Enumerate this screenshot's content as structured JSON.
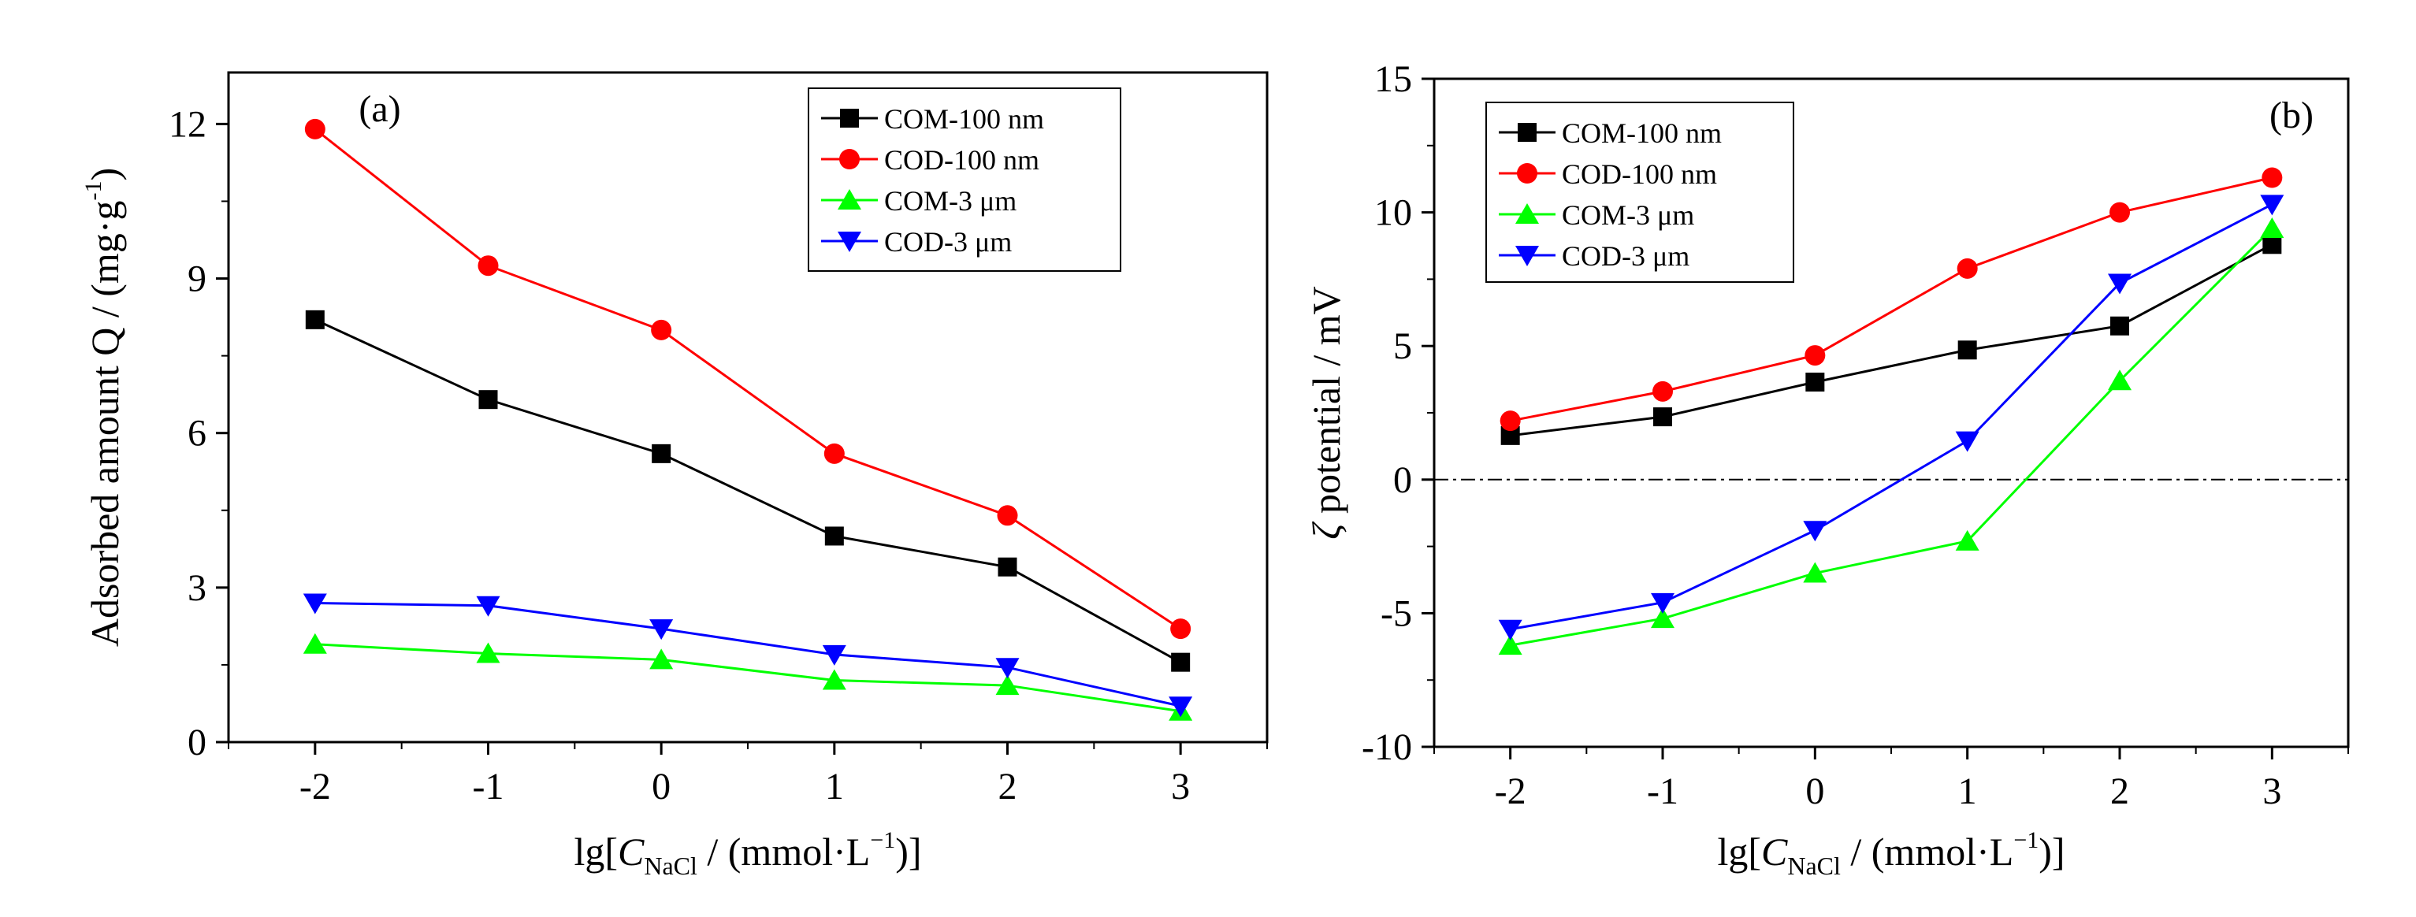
{
  "chart_data": [
    {
      "type": "line",
      "panel_label": "(a)",
      "x": [
        -2,
        -1,
        0,
        1,
        2,
        3
      ],
      "xticks": [
        "-2",
        "-1",
        "0",
        "1",
        "2",
        "3"
      ],
      "xlim": [
        -2.5,
        3.5
      ],
      "xlabel": {
        "prefix": "lg[",
        "italic": "C",
        "sub": "NaCl",
        "suffix": " / (mmol·L",
        "sup": "−1",
        "end": ")]"
      },
      "ylabel": {
        "text": "Adsorbed amount Q / (mg·g",
        "sup": "-1",
        "end": ")"
      },
      "ylim": [
        0,
        13
      ],
      "yticks": [
        0,
        3,
        6,
        9,
        12
      ],
      "ytick_labels": [
        "0",
        "3",
        "6",
        "9",
        "12"
      ],
      "legend_position": "top-right",
      "series": [
        {
          "name": "COM-100 nm",
          "color": "#000000",
          "marker": "square",
          "values": [
            8.2,
            6.65,
            5.6,
            4.0,
            3.4,
            1.55
          ]
        },
        {
          "name": "COD-100 nm",
          "color": "#ff0000",
          "marker": "circle",
          "values": [
            11.9,
            9.25,
            8.0,
            5.6,
            4.4,
            2.2
          ]
        },
        {
          "name": "COM-3 μm",
          "color": "#00ff00",
          "marker": "triangle-up",
          "values": [
            1.9,
            1.72,
            1.6,
            1.2,
            1.1,
            0.6
          ]
        },
        {
          "name": "COD-3 μm",
          "color": "#0000ff",
          "marker": "triangle-down",
          "values": [
            2.7,
            2.65,
            2.2,
            1.7,
            1.45,
            0.7
          ]
        }
      ]
    },
    {
      "type": "line",
      "panel_label": "(b)",
      "x": [
        -2,
        -1,
        0,
        1,
        2,
        3
      ],
      "xticks": [
        "-2",
        "-1",
        "0",
        "1",
        "2",
        "3"
      ],
      "xlim": [
        -2.5,
        3.5
      ],
      "xlabel": {
        "prefix": "lg[",
        "italic": "C",
        "sub": "NaCl",
        "suffix": " / (mmol·L",
        "sup": "−1",
        "end": ")]"
      },
      "ylabel": {
        "italic": "ζ",
        "text": " potential / mV"
      },
      "ylim": [
        -10,
        15
      ],
      "yticks": [
        -10,
        -5,
        0,
        5,
        10,
        15
      ],
      "ytick_labels": [
        "-10",
        "-5",
        "0",
        "5",
        "10",
        "15"
      ],
      "reference_line": 0,
      "legend_position": "top-left",
      "series": [
        {
          "name": "COM-100 nm",
          "color": "#000000",
          "marker": "square",
          "values": [
            1.65,
            2.35,
            3.65,
            4.85,
            5.75,
            8.8
          ]
        },
        {
          "name": "COD-100 nm",
          "color": "#ff0000",
          "marker": "circle",
          "values": [
            2.2,
            3.3,
            4.65,
            7.9,
            10.0,
            11.3
          ]
        },
        {
          "name": "COM-3 μm",
          "color": "#00ff00",
          "marker": "triangle-up",
          "values": [
            -6.2,
            -5.2,
            -3.5,
            -2.3,
            3.7,
            9.4
          ]
        },
        {
          "name": "COD-3 μm",
          "color": "#0000ff",
          "marker": "triangle-down",
          "values": [
            -5.6,
            -4.6,
            -1.9,
            1.45,
            7.35,
            10.3
          ]
        }
      ]
    }
  ]
}
